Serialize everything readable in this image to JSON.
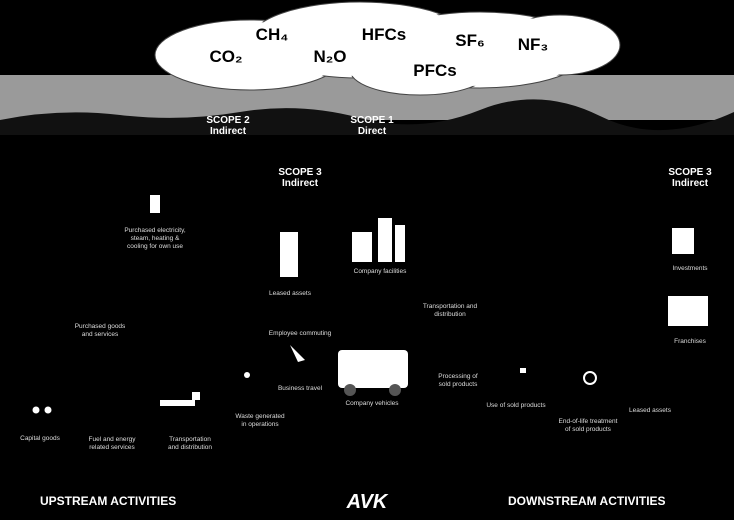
{
  "gases": [
    "CO₂",
    "CH₄",
    "N₂O",
    "HFCs",
    "SF₆",
    "NF₃",
    "PFCs"
  ],
  "scopes": [
    {
      "title": "SCOPE 2",
      "subtitle": "Indirect"
    },
    {
      "title": "SCOPE 1",
      "subtitle": "Direct"
    },
    {
      "title": "SCOPE 3",
      "subtitle": "Indirect"
    },
    {
      "title": "SCOPE 3",
      "subtitle": "Indirect"
    }
  ],
  "activities": [
    {
      "lines": [
        "Purchased electricity,",
        "steam, heating &",
        "cooling for own use"
      ]
    },
    {
      "lines": [
        "Leased assets"
      ]
    },
    {
      "lines": [
        "Company facilities"
      ]
    },
    {
      "lines": [
        "Transportation and",
        "distribution"
      ]
    },
    {
      "lines": [
        "Purchased goods",
        "and services"
      ]
    },
    {
      "lines": [
        "Employee commuting"
      ]
    },
    {
      "lines": [
        "Business travel"
      ]
    },
    {
      "lines": [
        "Company vehicles"
      ]
    },
    {
      "lines": [
        "Processing of",
        "sold products"
      ]
    },
    {
      "lines": [
        "Use of sold products"
      ]
    },
    {
      "lines": [
        "End-of-life treatment",
        "of sold products"
      ]
    },
    {
      "lines": [
        "Leased assets"
      ]
    },
    {
      "lines": [
        "Investments"
      ]
    },
    {
      "lines": [
        "Franchises"
      ]
    },
    {
      "lines": [
        "Waste generated",
        "in operations"
      ]
    },
    {
      "lines": [
        "Capital goods"
      ]
    },
    {
      "lines": [
        "Fuel and energy",
        "related services"
      ]
    },
    {
      "lines": [
        "Transportation",
        "and distribution"
      ]
    }
  ],
  "footer": {
    "left": "UPSTREAM ACTIVITIES",
    "logo": "AVK",
    "right": "DOWNSTREAM ACTIVITIES"
  }
}
